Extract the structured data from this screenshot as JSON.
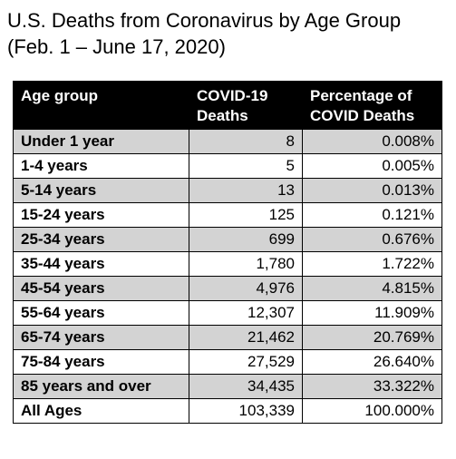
{
  "title_line1": "U.S. Deaths from Coronavirus by Age Group",
  "title_line2": "(Feb. 1 – June 17, 2020)",
  "headers": {
    "age": "Age group",
    "deaths_line1": "COVID-19",
    "deaths_line2": "Deaths",
    "pct_line1": "Percentage of",
    "pct_line2": "COVID Deaths"
  },
  "colors": {
    "header_bg": "#000000",
    "header_text": "#ffffff",
    "shaded_row": "#d3d3d3",
    "plain_row": "#ffffff"
  },
  "chart_data": {
    "type": "table",
    "title": "U.S. Deaths from Coronavirus by Age Group (Feb. 1 – June 17, 2020)",
    "columns": [
      "Age group",
      "COVID-19 Deaths",
      "Percentage of COVID Deaths"
    ],
    "rows": [
      {
        "age": "Under 1 year",
        "deaths": "8",
        "pct": "0.008%"
      },
      {
        "age": "1-4 years",
        "deaths": "5",
        "pct": "0.005%"
      },
      {
        "age": "5-14 years",
        "deaths": "13",
        "pct": "0.013%"
      },
      {
        "age": "15-24 years",
        "deaths": "125",
        "pct": "0.121%"
      },
      {
        "age": "25-34 years",
        "deaths": "699",
        "pct": "0.676%"
      },
      {
        "age": "35-44 years",
        "deaths": "1,780",
        "pct": "1.722%"
      },
      {
        "age": "45-54 years",
        "deaths": "4,976",
        "pct": "4.815%"
      },
      {
        "age": "55-64 years",
        "deaths": "12,307",
        "pct": "11.909%"
      },
      {
        "age": "65-74 years",
        "deaths": "21,462",
        "pct": "20.769%"
      },
      {
        "age": "75-84 years",
        "deaths": "27,529",
        "pct": "26.640%"
      },
      {
        "age": "85 years and over",
        "deaths": "34,435",
        "pct": "33.322%"
      },
      {
        "age": "All Ages",
        "deaths": "103,339",
        "pct": "100.000%"
      }
    ]
  }
}
